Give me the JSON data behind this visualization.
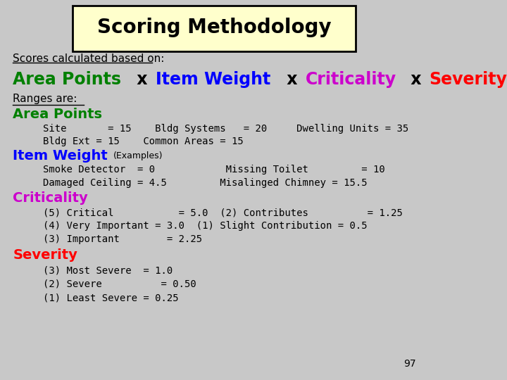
{
  "title": "Scoring Methodology",
  "title_bg": "#FFFFCC",
  "title_border": "#000000",
  "bg_color": "#C8C8C8",
  "slide_number": "97",
  "scores_line": "Scores calculated based on:",
  "formula": [
    {
      "text": "Area Points",
      "color": "#008000",
      "bold": true
    },
    {
      "text": " x ",
      "color": "#000000",
      "bold": true
    },
    {
      "text": "Item Weight",
      "color": "#0000FF",
      "bold": true
    },
    {
      "text": " x ",
      "color": "#000000",
      "bold": true
    },
    {
      "text": "Criticality",
      "color": "#CC00CC",
      "bold": true
    },
    {
      "text": " x ",
      "color": "#000000",
      "bold": true
    },
    {
      "text": "Severity",
      "color": "#FF0000",
      "bold": true
    }
  ],
  "ranges_label": "Ranges are:",
  "area_points_label": "Area Points",
  "area_points_color": "#008000",
  "area_points_lines": [
    "Site       = 15    Bldg Systems   = 20     Dwelling Units = 35",
    "Bldg Ext = 15    Common Areas = 15"
  ],
  "item_weight_label": "Item Weight",
  "item_weight_color": "#0000FF",
  "item_weight_examples": "(Examples)",
  "item_weight_lines": [
    "Smoke Detector  = 0            Missing Toilet         = 10",
    "Damaged Ceiling = 4.5         Misalinged Chimney = 15.5"
  ],
  "criticality_label": "Criticality",
  "criticality_color": "#CC00CC",
  "criticality_lines": [
    "(5) Critical           = 5.0  (2) Contributes          = 1.25",
    "(4) Very Important = 3.0  (1) Slight Contribution = 0.5",
    "(3) Important        = 2.25"
  ],
  "severity_label": "Severity",
  "severity_color": "#FF0000",
  "severity_lines": [
    "(3) Most Severe  = 1.0",
    "(2) Severe          = 0.50",
    "(1) Least Severe = 0.25"
  ]
}
